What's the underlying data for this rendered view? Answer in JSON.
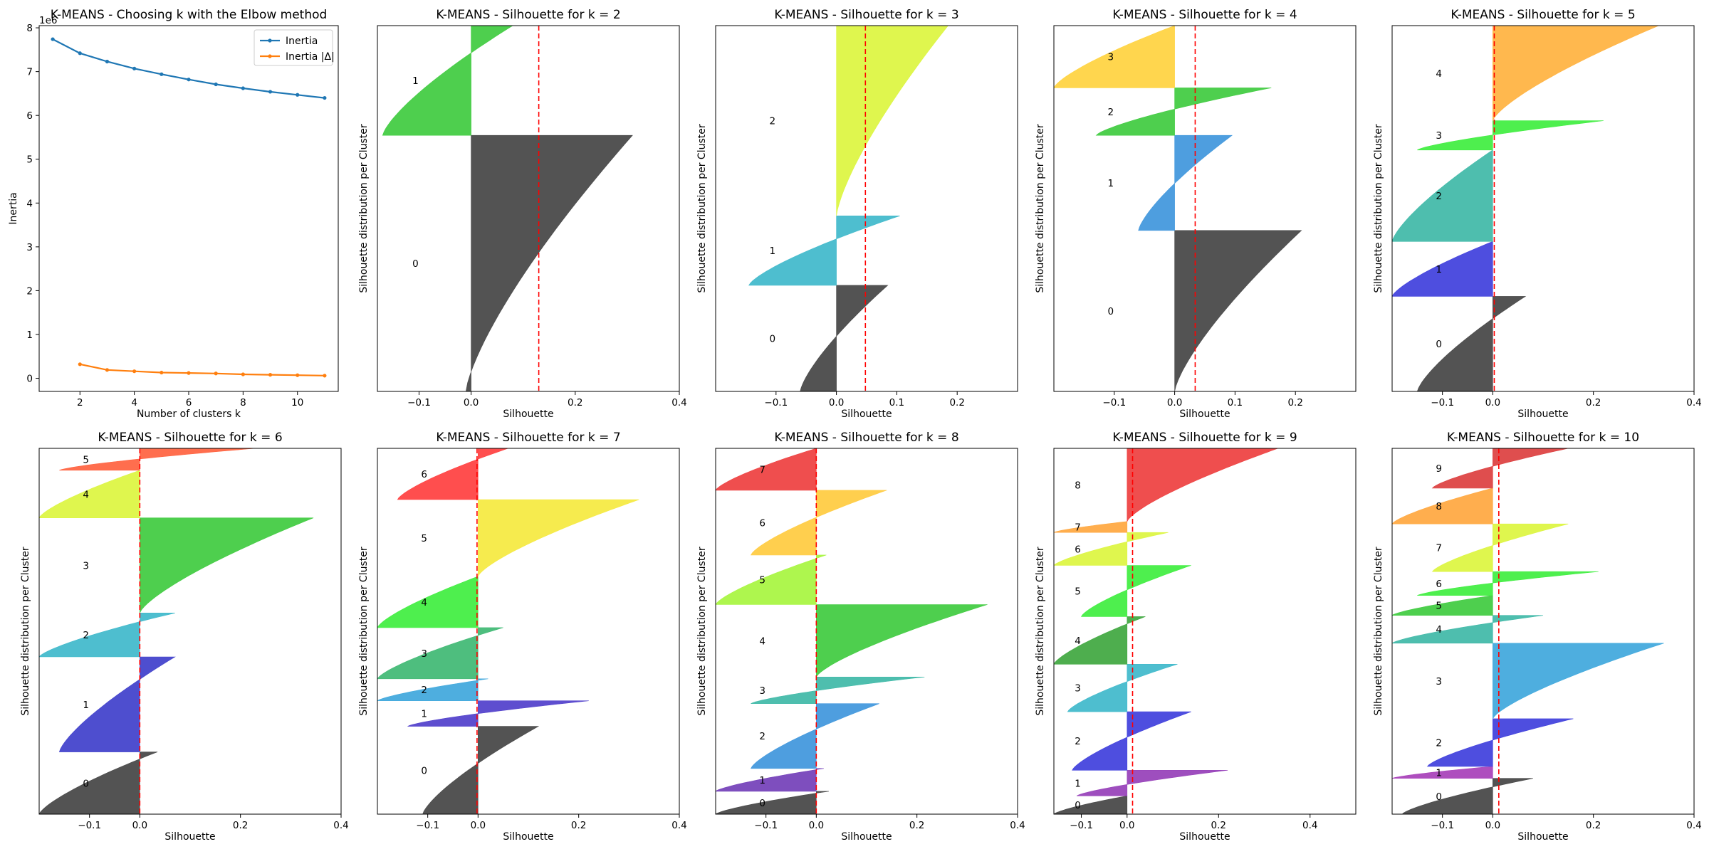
{
  "chart_data": [
    {
      "type": "line",
      "title": "K-MEANS - Choosing k with the Elbow method",
      "xlabel": "Number of clusters k",
      "ylabel": "Inertia",
      "y_multiplier_label": "1e6",
      "xlim": [
        0.5,
        11.5
      ],
      "ylim": [
        -0.3,
        8.05
      ],
      "xticks": [
        2,
        4,
        6,
        8,
        10
      ],
      "yticks": [
        0,
        1,
        2,
        3,
        4,
        5,
        6,
        7,
        8
      ],
      "legend_position": "upper right",
      "series": [
        {
          "name": "Inertia",
          "color": "#1f77b4",
          "x": [
            1,
            2,
            3,
            4,
            5,
            6,
            7,
            8,
            9,
            10,
            11
          ],
          "y": [
            7.74,
            7.42,
            7.23,
            7.07,
            6.94,
            6.82,
            6.71,
            6.62,
            6.54,
            6.47,
            6.4
          ]
        },
        {
          "name": "Inertia |Δ|",
          "color": "#ff7f0e",
          "x": [
            2,
            3,
            4,
            5,
            6,
            7,
            8,
            9,
            10,
            11
          ],
          "y": [
            0.32,
            0.19,
            0.16,
            0.13,
            0.12,
            0.11,
            0.09,
            0.08,
            0.07,
            0.06
          ]
        }
      ]
    },
    {
      "type": "area",
      "title": "K-MEANS - Silhouette for k = 2",
      "xlabel": "Silhouette",
      "ylabel": "Silhouette distribution per Cluster",
      "xlim": [
        -0.18,
        0.4
      ],
      "xticks": [
        -0.1,
        0.0,
        0.2,
        0.4
      ],
      "mean_silhouette": 0.13,
      "clusters": [
        {
          "label": "0",
          "color": "#4a4a4a",
          "size": 0.7,
          "min": -0.01,
          "max": 0.31
        },
        {
          "label": "1",
          "color": "#44cc44",
          "size": 0.3,
          "min": -0.17,
          "max": 0.08
        }
      ]
    },
    {
      "type": "area",
      "title": "K-MEANS - Silhouette for k = 3",
      "xlabel": "Silhouette",
      "ylabel": "Silhouette distribution per Cluster",
      "xlim": [
        -0.2,
        0.3
      ],
      "xticks": [
        -0.1,
        0.0,
        0.1,
        0.2
      ],
      "mean_silhouette": 0.048,
      "clusters": [
        {
          "label": "0",
          "color": "#4a4a4a",
          "size": 0.29,
          "min": -0.06,
          "max": 0.085
        },
        {
          "label": "1",
          "color": "#44bbcc",
          "size": 0.19,
          "min": -0.145,
          "max": 0.105
        },
        {
          "label": "2",
          "color": "#ddf544",
          "size": 0.52,
          "min": 0.0,
          "max": 0.185
        }
      ]
    },
    {
      "type": "area",
      "title": "K-MEANS - Silhouette for k = 4",
      "xlabel": "Silhouette",
      "ylabel": "Silhouette distribution per Cluster",
      "xlim": [
        -0.2,
        0.3
      ],
      "xticks": [
        -0.1,
        0.0,
        0.1,
        0.2
      ],
      "mean_silhouette": 0.034,
      "clusters": [
        {
          "label": "0",
          "color": "#4a4a4a",
          "size": 0.44,
          "min": 0.0,
          "max": 0.21
        },
        {
          "label": "1",
          "color": "#4499dd",
          "size": 0.26,
          "min": -0.06,
          "max": 0.095
        },
        {
          "label": "2",
          "color": "#44cc44",
          "size": 0.13,
          "min": -0.13,
          "max": 0.16
        },
        {
          "label": "3",
          "color": "#ffd444",
          "size": 0.17,
          "min": -0.2,
          "max": 0.0
        }
      ]
    },
    {
      "type": "area",
      "title": "K-MEANS - Silhouette for k = 5",
      "xlabel": "Silhouette",
      "ylabel": "Silhouette distribution per Cluster",
      "xlim": [
        -0.2,
        0.4
      ],
      "xticks": [
        -0.1,
        0.0,
        0.2,
        0.4
      ],
      "mean_silhouette": 0.003,
      "clusters": [
        {
          "label": "0",
          "color": "#4a4a4a",
          "size": 0.26,
          "min": -0.15,
          "max": 0.065
        },
        {
          "label": "1",
          "color": "#4444dd",
          "size": 0.15,
          "min": -0.2,
          "max": 0.0
        },
        {
          "label": "2",
          "color": "#44bbaa",
          "size": 0.25,
          "min": -0.2,
          "max": 0.0
        },
        {
          "label": "3",
          "color": "#44ee44",
          "size": 0.08,
          "min": -0.15,
          "max": 0.22
        },
        {
          "label": "4",
          "color": "#ffb444",
          "size": 0.26,
          "min": 0.0,
          "max": 0.33
        }
      ]
    },
    {
      "type": "area",
      "title": "K-MEANS - Silhouette for k = 6",
      "xlabel": "Silhouette",
      "ylabel": "Silhouette distribution per Cluster",
      "xlim": [
        -0.2,
        0.4
      ],
      "xticks": [
        -0.1,
        0.0,
        0.2,
        0.4
      ],
      "mean_silhouette": 0.0,
      "clusters": [
        {
          "label": "0",
          "color": "#4a4a4a",
          "size": 0.17,
          "min": -0.2,
          "max": 0.035
        },
        {
          "label": "1",
          "color": "#4444cc",
          "size": 0.26,
          "min": -0.16,
          "max": 0.07
        },
        {
          "label": "2",
          "color": "#44bbcc",
          "size": 0.12,
          "min": -0.2,
          "max": 0.07
        },
        {
          "label": "3",
          "color": "#44cc44",
          "size": 0.26,
          "min": 0.0,
          "max": 0.345
        },
        {
          "label": "4",
          "color": "#ddf544",
          "size": 0.13,
          "min": -0.2,
          "max": 0.0
        },
        {
          "label": "5",
          "color": "#ff6644",
          "size": 0.06,
          "min": -0.16,
          "max": 0.23
        }
      ]
    },
    {
      "type": "area",
      "title": "K-MEANS - Silhouette for k = 7",
      "xlabel": "Silhouette",
      "ylabel": "Silhouette distribution per Cluster",
      "xlim": [
        -0.2,
        0.4
      ],
      "xticks": [
        -0.1,
        0.0,
        0.2,
        0.4
      ],
      "mean_silhouette": -0.002,
      "clusters": [
        {
          "label": "0",
          "color": "#4a4a4a",
          "size": 0.24,
          "min": -0.11,
          "max": 0.12
        },
        {
          "label": "1",
          "color": "#5544cc",
          "size": 0.07,
          "min": -0.14,
          "max": 0.22
        },
        {
          "label": "2",
          "color": "#44aadd",
          "size": 0.06,
          "min": -0.2,
          "max": 0.02
        },
        {
          "label": "3",
          "color": "#44bb77",
          "size": 0.14,
          "min": -0.2,
          "max": 0.05
        },
        {
          "label": "4",
          "color": "#44ee44",
          "size": 0.14,
          "min": -0.2,
          "max": 0.0
        },
        {
          "label": "5",
          "color": "#f5ea44",
          "size": 0.21,
          "min": 0.0,
          "max": 0.32
        },
        {
          "label": "6",
          "color": "#ff4444",
          "size": 0.14,
          "min": -0.16,
          "max": 0.06
        }
      ]
    },
    {
      "type": "area",
      "title": "K-MEANS - Silhouette for k = 8",
      "xlabel": "Silhouette",
      "ylabel": "Silhouette distribution per Cluster",
      "xlim": [
        -0.2,
        0.4
      ],
      "xticks": [
        -0.1,
        0.0,
        0.2,
        0.4
      ],
      "mean_silhouette": 0.0,
      "clusters": [
        {
          "label": "0",
          "color": "#4a4a4a",
          "size": 0.06,
          "min": -0.2,
          "max": 0.025
        },
        {
          "label": "1",
          "color": "#7744bb",
          "size": 0.06,
          "min": -0.2,
          "max": 0.015
        },
        {
          "label": "2",
          "color": "#4499dd",
          "size": 0.17,
          "min": -0.13,
          "max": 0.125
        },
        {
          "label": "3",
          "color": "#44bbaa",
          "size": 0.07,
          "min": -0.13,
          "max": 0.215
        },
        {
          "label": "4",
          "color": "#44cc44",
          "size": 0.19,
          "min": 0.0,
          "max": 0.34
        },
        {
          "label": "5",
          "color": "#aaf544",
          "size": 0.13,
          "min": -0.2,
          "max": 0.02
        },
        {
          "label": "6",
          "color": "#ffcc44",
          "size": 0.17,
          "min": -0.13,
          "max": 0.14
        },
        {
          "label": "7",
          "color": "#ee4444",
          "size": 0.11,
          "min": -0.2,
          "max": 0.0
        }
      ]
    },
    {
      "type": "area",
      "title": "K-MEANS - Silhouette for k = 9",
      "xlabel": "Silhouette",
      "ylabel": "Silhouette distribution per Cluster",
      "xlim": [
        -0.16,
        0.5
      ],
      "xticks": [
        -0.1,
        0.0,
        0.2,
        0.4
      ],
      "mean_silhouette": 0.012,
      "clusters": [
        {
          "label": "0",
          "color": "#4a4a4a",
          "size": 0.05,
          "min": -0.16,
          "max": 0.0
        },
        {
          "label": "1",
          "color": "#9944bb",
          "size": 0.07,
          "min": -0.11,
          "max": 0.22
        },
        {
          "label": "2",
          "color": "#4444dd",
          "size": 0.16,
          "min": -0.12,
          "max": 0.14
        },
        {
          "label": "3",
          "color": "#44bbcc",
          "size": 0.13,
          "min": -0.13,
          "max": 0.11
        },
        {
          "label": "4",
          "color": "#44aa44",
          "size": 0.13,
          "min": -0.16,
          "max": 0.04
        },
        {
          "label": "5",
          "color": "#44ee44",
          "size": 0.14,
          "min": -0.1,
          "max": 0.14
        },
        {
          "label": "6",
          "color": "#ddf544",
          "size": 0.09,
          "min": -0.16,
          "max": 0.09
        },
        {
          "label": "7",
          "color": "#ffaa44",
          "size": 0.03,
          "min": -0.16,
          "max": 0.0
        },
        {
          "label": "8",
          "color": "#ee4444",
          "size": 0.2,
          "min": 0.0,
          "max": 0.33
        }
      ]
    },
    {
      "type": "area",
      "title": "K-MEANS - Silhouette for k = 10",
      "xlabel": "Silhouette",
      "ylabel": "Silhouette distribution per Cluster",
      "xlim": [
        -0.2,
        0.4
      ],
      "xticks": [
        -0.1,
        0.0,
        0.2,
        0.4
      ],
      "mean_silhouette": 0.012,
      "clusters": [
        {
          "label": "0",
          "color": "#4a4a4a",
          "size": 0.09,
          "min": -0.18,
          "max": 0.08
        },
        {
          "label": "1",
          "color": "#aa44bb",
          "size": 0.03,
          "min": -0.2,
          "max": 0.0
        },
        {
          "label": "2",
          "color": "#4444dd",
          "size": 0.12,
          "min": -0.13,
          "max": 0.16
        },
        {
          "label": "3",
          "color": "#44aadd",
          "size": 0.19,
          "min": 0.0,
          "max": 0.34
        },
        {
          "label": "4",
          "color": "#44bbaa",
          "size": 0.07,
          "min": -0.2,
          "max": 0.1
        },
        {
          "label": "5",
          "color": "#44cc44",
          "size": 0.05,
          "min": -0.2,
          "max": 0.0
        },
        {
          "label": "6",
          "color": "#44ee44",
          "size": 0.06,
          "min": -0.15,
          "max": 0.21
        },
        {
          "label": "7",
          "color": "#ddf544",
          "size": 0.12,
          "min": -0.12,
          "max": 0.15
        },
        {
          "label": "8",
          "color": "#ffaa44",
          "size": 0.09,
          "min": -0.2,
          "max": 0.0
        },
        {
          "label": "9",
          "color": "#dd4444",
          "size": 0.1,
          "min": -0.12,
          "max": 0.15
        }
      ]
    }
  ]
}
